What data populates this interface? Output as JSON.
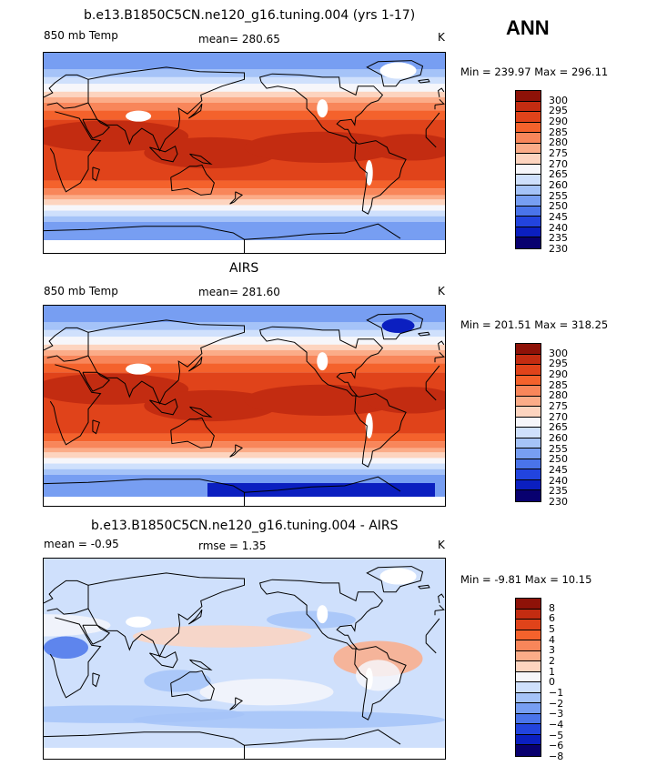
{
  "season": "ANN",
  "colors": {
    "abs": [
      "#08006f",
      "#0b1fc0",
      "#2244de",
      "#4a74ea",
      "#779ef2",
      "#a5c3f8",
      "#cfe0fc",
      "#f6f6fa",
      "#fdd4bf",
      "#fbac88",
      "#f8865a",
      "#f4622c",
      "#e0431a",
      "#c32c11",
      "#8e1208"
    ],
    "diff": [
      "#08006f",
      "#0b1fc0",
      "#2244de",
      "#4a74ea",
      "#779ef2",
      "#a5c3f8",
      "#cfe0fc",
      "#f6f6fa",
      "#fdd4bf",
      "#fbac88",
      "#f8865a",
      "#f4622c",
      "#e0431a",
      "#c32c11",
      "#8e1208"
    ]
  },
  "panels": [
    {
      "title": "b.e13.B1850C5CN.ne120_g16.tuning.004 (yrs 1-17)",
      "left_label": "850 mb Temp",
      "mid_label": "mean=  280.65",
      "unit": "K",
      "stats": "Min = 239.97 Max = 296.11",
      "colorbar_labels": [
        "300",
        "295",
        "290",
        "285",
        "280",
        "275",
        "270",
        "265",
        "260",
        "255",
        "250",
        "245",
        "240",
        "235",
        "230"
      ]
    },
    {
      "title": "AIRS",
      "left_label": "850 mb Temp",
      "mid_label": "mean=  281.60",
      "unit": "K",
      "stats": "Min = 201.51 Max = 318.25",
      "colorbar_labels": [
        "300",
        "295",
        "290",
        "285",
        "280",
        "275",
        "270",
        "265",
        "260",
        "255",
        "250",
        "245",
        "240",
        "235",
        "230"
      ]
    },
    {
      "title": "b.e13.B1850C5CN.ne120_g16.tuning.004 - AIRS",
      "left_label": "mean =   -0.95",
      "mid_label": "rmse =    1.35",
      "unit": "K",
      "stats": "Min =   -9.81 Max =   10.15",
      "colorbar_labels": [
        "8",
        "6",
        "5",
        "4",
        "3",
        "2",
        "1",
        "0",
        "−1",
        "−2",
        "−3",
        "−4",
        "−5",
        "−6",
        "−8"
      ]
    }
  ]
}
